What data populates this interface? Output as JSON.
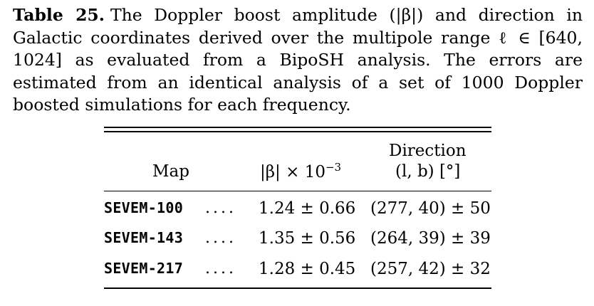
{
  "caption": {
    "label": "Table 25.",
    "text_line1": "The Doppler boost amplitude (|β|) and direction",
    "text_line2": "in Galactic coordinates derived over the multipole range ℓ ∈",
    "text_line3": "[640, 1024] as evaluated from a BipoSH analysis. The errors are",
    "text_line4": "estimated from an identical analysis of a set of 1000 Doppler",
    "text_line5": "boosted simulations for each frequency."
  },
  "table": {
    "headers": {
      "map": "Map",
      "beta": "|β| × 10",
      "beta_exp": "−3",
      "direction": "Direction",
      "direction_units": "(l, b) [°]"
    },
    "rows": [
      {
        "map": "SEVEM-100",
        "dots": "....",
        "beta": "1.24 ± 0.66",
        "direction": "(277, 40) ± 50"
      },
      {
        "map": "SEVEM-143",
        "dots": "....",
        "beta": "1.35 ± 0.56",
        "direction": "(264, 39) ± 39"
      },
      {
        "map": "SEVEM-217",
        "dots": "....",
        "beta": "1.28 ± 0.45",
        "direction": "(257, 42) ± 32"
      }
    ]
  }
}
